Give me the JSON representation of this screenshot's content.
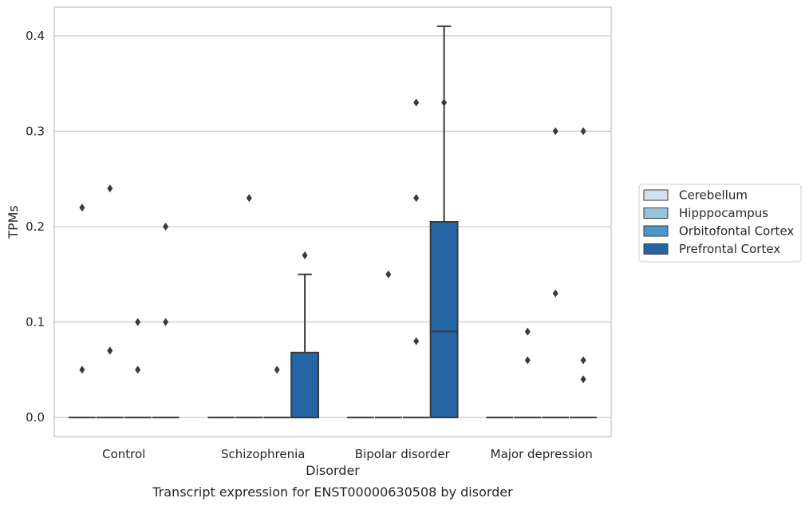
{
  "chart_data": {
    "type": "box",
    "caption": "Transcript expression for ENST00000630508 by disorder",
    "xlabel": "Disorder",
    "ylabel": "TPMs",
    "ylim": [
      -0.02,
      0.43
    ],
    "yticks": [
      0.0,
      0.1,
      0.2,
      0.3,
      0.4
    ],
    "ytick_labels": [
      "0.0",
      "0.1",
      "0.2",
      "0.3",
      "0.4"
    ],
    "grid": "horizontal",
    "legend_position": "right",
    "categories": [
      "Control",
      "Schizophrenia",
      "Bipolar disorder",
      "Major depression"
    ],
    "series": [
      {
        "name": "Cerebellum",
        "color": "#d0e1f2",
        "boxes": [
          {
            "q1": 0,
            "median": 0,
            "q3": 0,
            "whisker_low": 0,
            "whisker_high": 0,
            "outliers": [
              0.22,
              0.05
            ]
          },
          {
            "q1": 0,
            "median": 0,
            "q3": 0,
            "whisker_low": 0,
            "whisker_high": 0,
            "outliers": []
          },
          {
            "q1": 0,
            "median": 0,
            "q3": 0,
            "whisker_low": 0,
            "whisker_high": 0,
            "outliers": []
          },
          {
            "q1": 0,
            "median": 0,
            "q3": 0,
            "whisker_low": 0,
            "whisker_high": 0,
            "outliers": []
          }
        ]
      },
      {
        "name": "Hipppocampus",
        "color": "#94c4df",
        "boxes": [
          {
            "q1": 0,
            "median": 0,
            "q3": 0,
            "whisker_low": 0,
            "whisker_high": 0,
            "outliers": [
              0.24,
              0.07,
              0.07
            ]
          },
          {
            "q1": 0,
            "median": 0,
            "q3": 0,
            "whisker_low": 0,
            "whisker_high": 0,
            "outliers": [
              0.23
            ]
          },
          {
            "q1": 0,
            "median": 0,
            "q3": 0,
            "whisker_low": 0,
            "whisker_high": 0,
            "outliers": [
              0.15
            ]
          },
          {
            "q1": 0,
            "median": 0,
            "q3": 0,
            "whisker_low": 0,
            "whisker_high": 0,
            "outliers": [
              0.09,
              0.06
            ]
          }
        ]
      },
      {
        "name": "Orbitofontal Cortex",
        "color": "#4a98c9",
        "boxes": [
          {
            "q1": 0,
            "median": 0,
            "q3": 0,
            "whisker_low": 0,
            "whisker_high": 0,
            "outliers": [
              0.1,
              0.05
            ]
          },
          {
            "q1": 0,
            "median": 0,
            "q3": 0,
            "whisker_low": 0,
            "whisker_high": 0,
            "outliers": [
              0.05
            ]
          },
          {
            "q1": 0,
            "median": 0,
            "q3": 0,
            "whisker_low": 0,
            "whisker_high": 0,
            "outliers": [
              0.33,
              0.23,
              0.08
            ]
          },
          {
            "q1": 0,
            "median": 0,
            "q3": 0,
            "whisker_low": 0,
            "whisker_high": 0,
            "outliers": [
              0.3,
              0.13
            ]
          }
        ]
      },
      {
        "name": "Prefrontal Cortex",
        "color": "#2565a4",
        "boxes": [
          {
            "q1": 0,
            "median": 0,
            "q3": 0,
            "whisker_low": 0,
            "whisker_high": 0,
            "outliers": [
              0.2,
              0.1
            ]
          },
          {
            "q1": 0,
            "median": 0,
            "q3": 0.068,
            "whisker_low": 0,
            "whisker_high": 0.15,
            "outliers": [
              0.17
            ]
          },
          {
            "q1": 0,
            "median": 0.09,
            "q3": 0.205,
            "whisker_low": 0,
            "whisker_high": 0.41,
            "outliers": [
              0.33
            ]
          },
          {
            "q1": 0,
            "median": 0,
            "q3": 0,
            "whisker_low": 0,
            "whisker_high": 0,
            "outliers": [
              0.04,
              0.3,
              0.06
            ]
          }
        ]
      }
    ]
  }
}
